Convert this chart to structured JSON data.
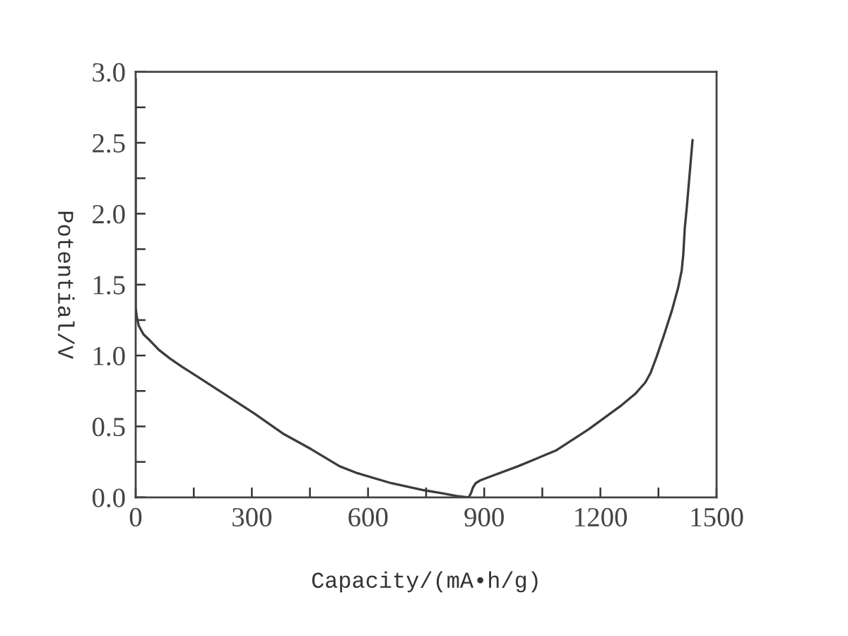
{
  "chart_data": {
    "type": "line",
    "xlabel": "Capacity/(mA•h/g)",
    "ylabel": "Potential/V",
    "series": [
      {
        "color": "#3c3c3c",
        "x": [
          0,
          0,
          3,
          8,
          20,
          39,
          60,
          88,
          120,
          160,
          234,
          307,
          380,
          453,
          526,
          573,
          660,
          745,
          790,
          829,
          860,
          866,
          871,
          878,
          890,
          909,
          988,
          1085,
          1170,
          1255,
          1290,
          1316,
          1330,
          1345,
          1365,
          1385,
          1401,
          1410,
          1414,
          1418,
          1423,
          1438
        ],
        "values": [
          2.95,
          1.34,
          1.27,
          1.21,
          1.15,
          1.1,
          1.04,
          0.98,
          0.92,
          0.85,
          0.72,
          0.59,
          0.45,
          0.34,
          0.22,
          0.17,
          0.1,
          0.05,
          0.03,
          0.01,
          0.0,
          0.03,
          0.07,
          0.1,
          0.12,
          0.14,
          0.22,
          0.33,
          0.48,
          0.65,
          0.73,
          0.81,
          0.88,
          0.99,
          1.15,
          1.32,
          1.48,
          1.6,
          1.71,
          1.9,
          2.04,
          2.52
        ]
      }
    ],
    "xlim": [
      0,
      1500
    ],
    "xticks": [
      0,
      {
        "value": 150,
        "label": null
      },
      300,
      {
        "value": 450,
        "label": null
      },
      600,
      {
        "value": 750,
        "label": null
      },
      900,
      {
        "value": 1050,
        "label": null
      },
      1200,
      {
        "value": 1350,
        "label": null
      },
      1500
    ],
    "ylim": [
      0,
      3.0
    ],
    "yticks": [
      {
        "value": 0,
        "label": "0.0"
      },
      {
        "value": 0.25,
        "label": null
      },
      {
        "value": 0.5,
        "label": "0.5"
      },
      {
        "value": 0.75,
        "label": null
      },
      {
        "value": 1.0,
        "label": "1.0"
      },
      {
        "value": 1.25,
        "label": null
      },
      {
        "value": 1.5,
        "label": "1.5"
      },
      {
        "value": 1.75,
        "label": null
      },
      {
        "value": 2.0,
        "label": "2.0"
      },
      {
        "value": 2.25,
        "label": null
      },
      {
        "value": 2.5,
        "label": "2.5"
      },
      {
        "value": 2.75,
        "label": null
      },
      {
        "value": 3.0,
        "label": "3.0"
      }
    ],
    "grid": false,
    "marker": "none",
    "line_style": "solid"
  }
}
